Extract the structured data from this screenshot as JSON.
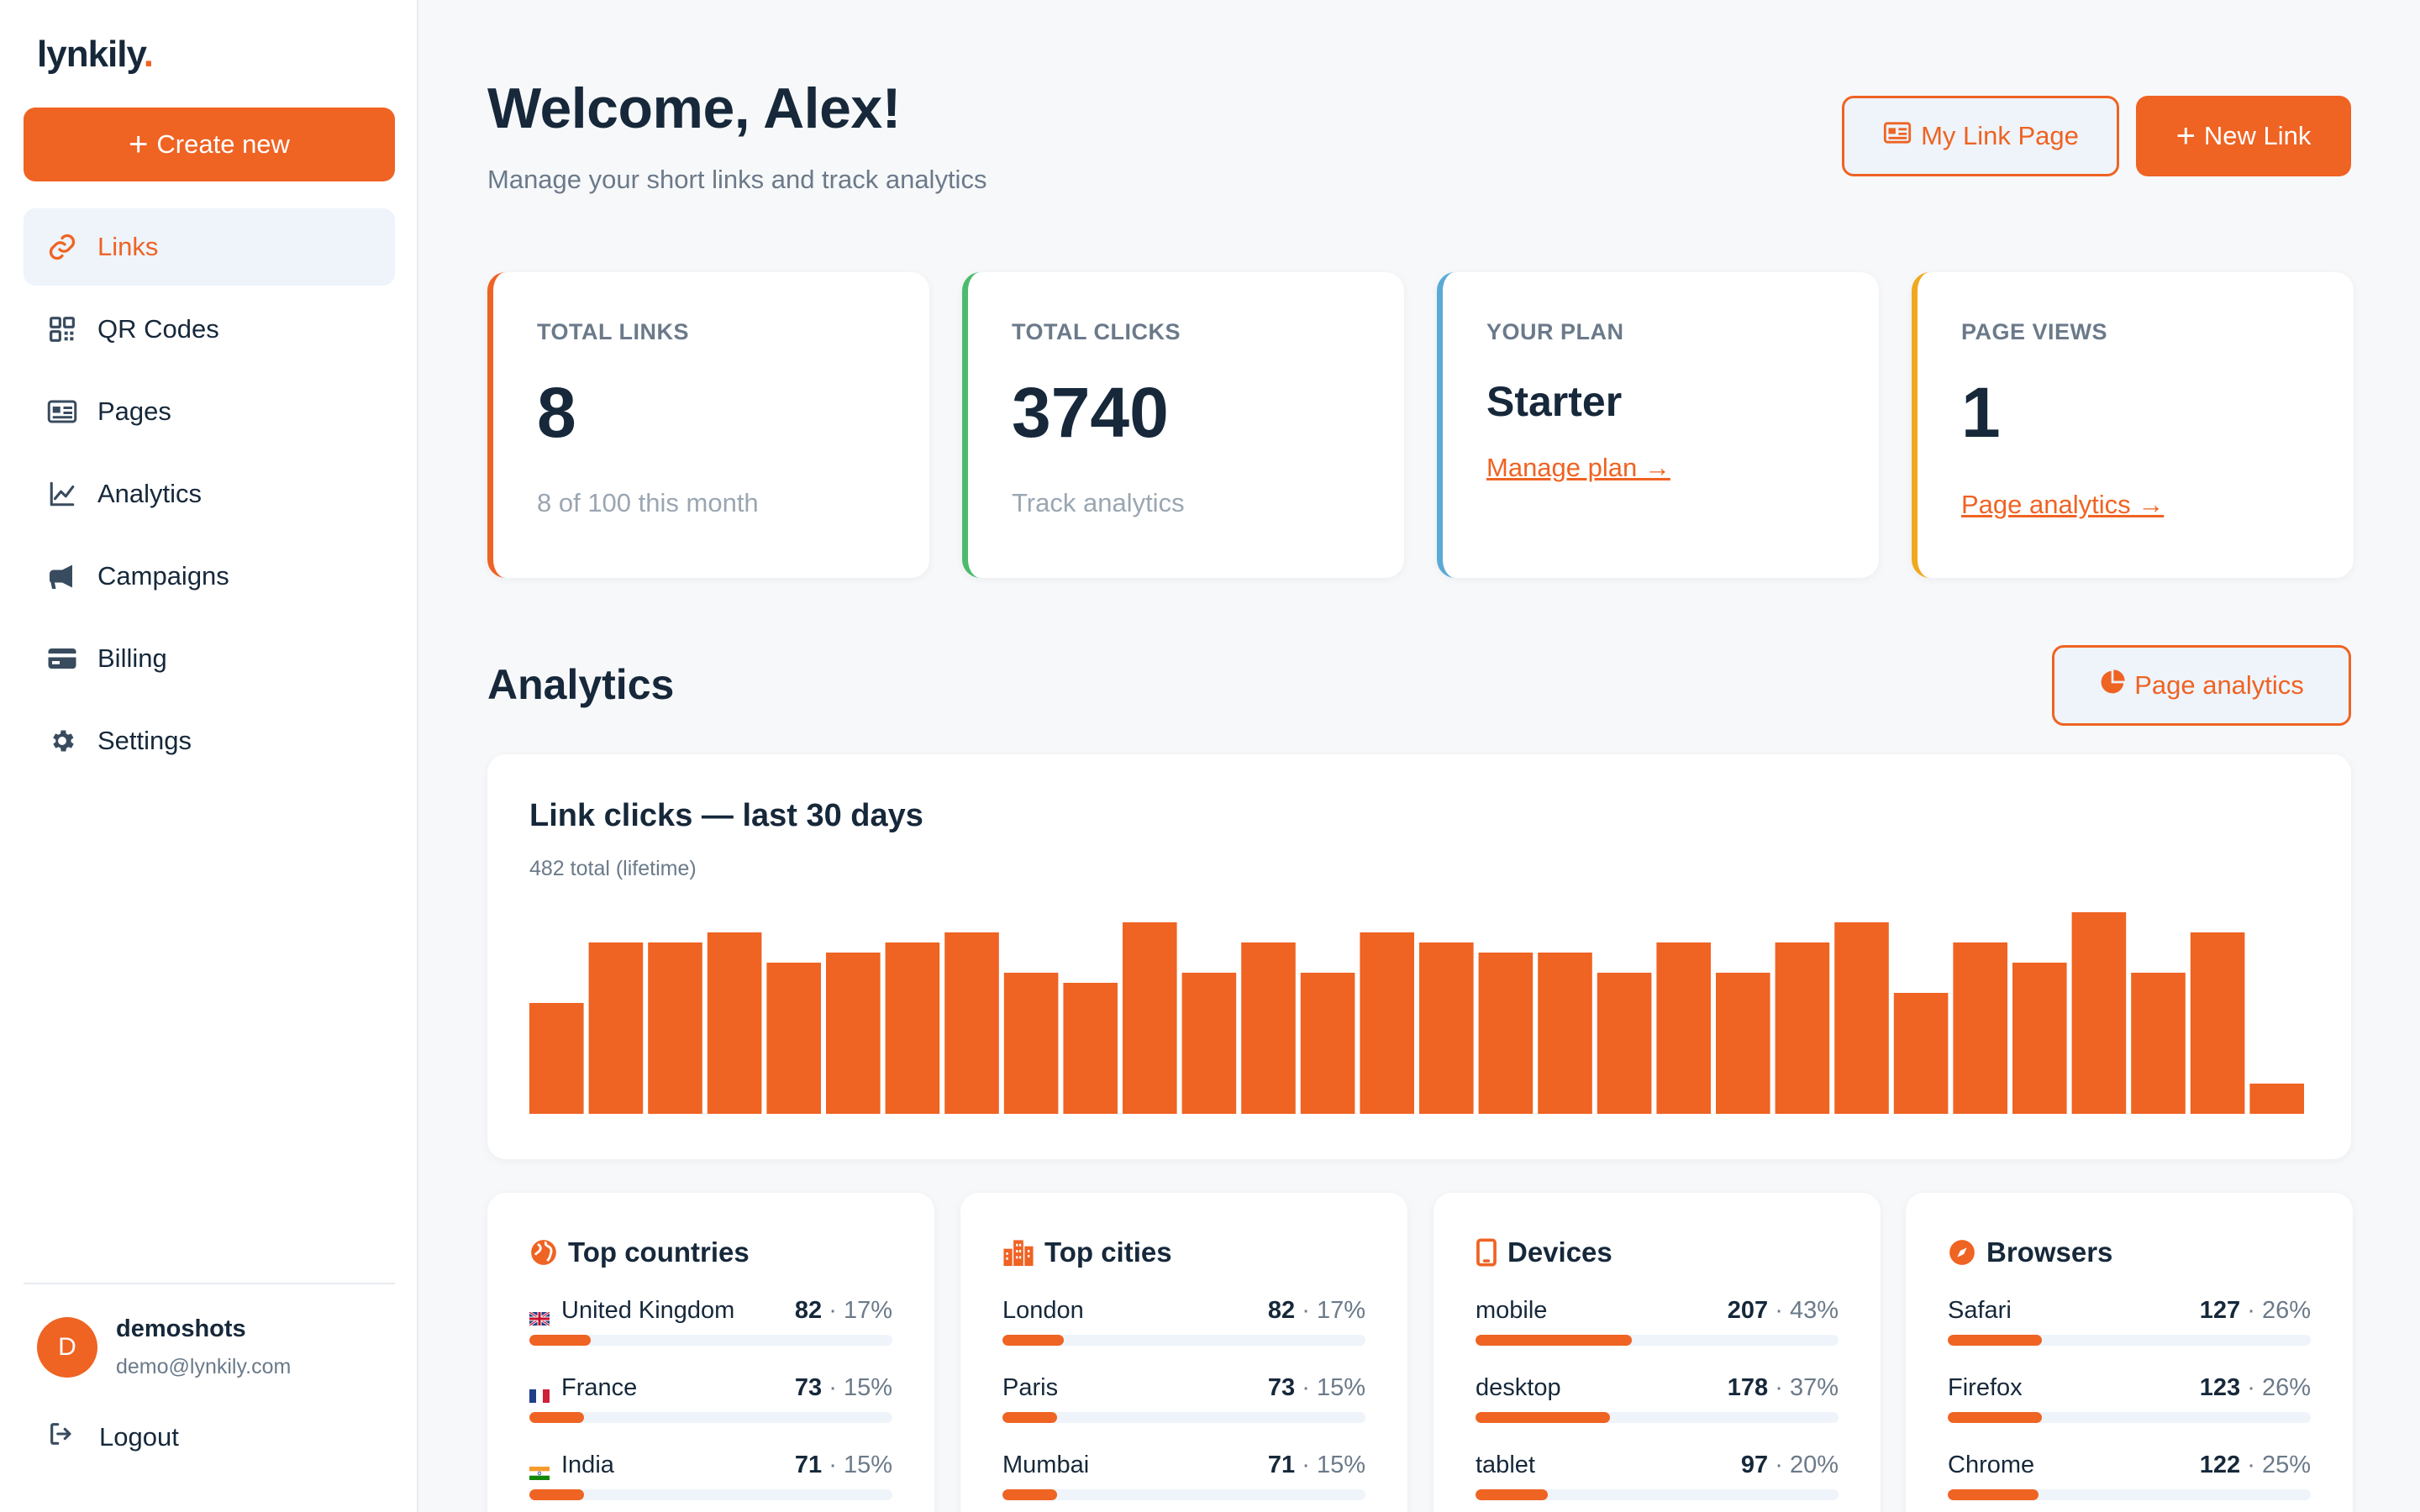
{
  "brand": {
    "name": "lynkily",
    "dot": "."
  },
  "sidebar": {
    "create_label": "Create new",
    "items": [
      {
        "label": "Links",
        "icon": "link-icon",
        "active": true
      },
      {
        "label": "QR Codes",
        "icon": "qr-code-icon"
      },
      {
        "label": "Pages",
        "icon": "id-card-icon"
      },
      {
        "label": "Analytics",
        "icon": "line-chart-icon"
      },
      {
        "label": "Campaigns",
        "icon": "megaphone-icon"
      },
      {
        "label": "Billing",
        "icon": "credit-card-icon"
      },
      {
        "label": "Settings",
        "icon": "gear-icon"
      }
    ],
    "user": {
      "initial": "D",
      "name": "demoshots",
      "email": "demo@lynkily.com"
    },
    "logout_label": "Logout"
  },
  "header": {
    "title": "Welcome, Alex!",
    "subtitle": "Manage your short links and track analytics",
    "my_link_page_label": "My Link Page",
    "new_link_label": "New Link"
  },
  "stats": {
    "total_links": {
      "label": "TOTAL LINKS",
      "value": "8",
      "note": "8 of 100 this month",
      "color": "#ef6323"
    },
    "total_clicks": {
      "label": "TOTAL CLICKS",
      "value": "3740",
      "note": "Track analytics",
      "color": "#4cbb6c"
    },
    "plan": {
      "label": "YOUR PLAN",
      "value": "Starter",
      "link": "Manage plan →",
      "color": "#5aaad6"
    },
    "page_views": {
      "label": "PAGE VIEWS",
      "value": "1",
      "link": "Page analytics →",
      "color": "#f0a81e"
    }
  },
  "analytics": {
    "heading": "Analytics",
    "page_analytics_label": "Page analytics"
  },
  "chart_data": {
    "type": "bar",
    "title": "Link clicks — last 30 days",
    "subtitle": "482 total (lifetime)",
    "color": "#ef6323",
    "values": [
      11,
      17,
      17,
      18,
      15,
      16,
      17,
      18,
      14,
      13,
      19,
      14,
      17,
      14,
      18,
      17,
      16,
      16,
      14,
      17,
      14,
      17,
      19,
      12,
      17,
      15,
      20,
      14,
      18,
      3
    ],
    "ylim": [
      0,
      20
    ]
  },
  "breakdowns": {
    "countries": {
      "title": "Top countries",
      "rows": [
        {
          "name": "United Kingdom",
          "count": "82",
          "pct": "17%",
          "fraction": 0.17,
          "flag": "gb"
        },
        {
          "name": "France",
          "count": "73",
          "pct": "15%",
          "fraction": 0.15,
          "flag": "fr"
        },
        {
          "name": "India",
          "count": "71",
          "pct": "15%",
          "fraction": 0.15,
          "flag": "in"
        }
      ]
    },
    "cities": {
      "title": "Top cities",
      "rows": [
        {
          "name": "London",
          "count": "82",
          "pct": "17%",
          "fraction": 0.17
        },
        {
          "name": "Paris",
          "count": "73",
          "pct": "15%",
          "fraction": 0.15
        },
        {
          "name": "Mumbai",
          "count": "71",
          "pct": "15%",
          "fraction": 0.15
        }
      ]
    },
    "devices": {
      "title": "Devices",
      "rows": [
        {
          "name": "mobile",
          "count": "207",
          "pct": "43%",
          "fraction": 0.43
        },
        {
          "name": "desktop",
          "count": "178",
          "pct": "37%",
          "fraction": 0.37
        },
        {
          "name": "tablet",
          "count": "97",
          "pct": "20%",
          "fraction": 0.2
        }
      ]
    },
    "browsers": {
      "title": "Browsers",
      "rows": [
        {
          "name": "Safari",
          "count": "127",
          "pct": "26%",
          "fraction": 0.26
        },
        {
          "name": "Firefox",
          "count": "123",
          "pct": "26%",
          "fraction": 0.26
        },
        {
          "name": "Chrome",
          "count": "122",
          "pct": "25%",
          "fraction": 0.25
        }
      ]
    },
    "separator": "·"
  }
}
